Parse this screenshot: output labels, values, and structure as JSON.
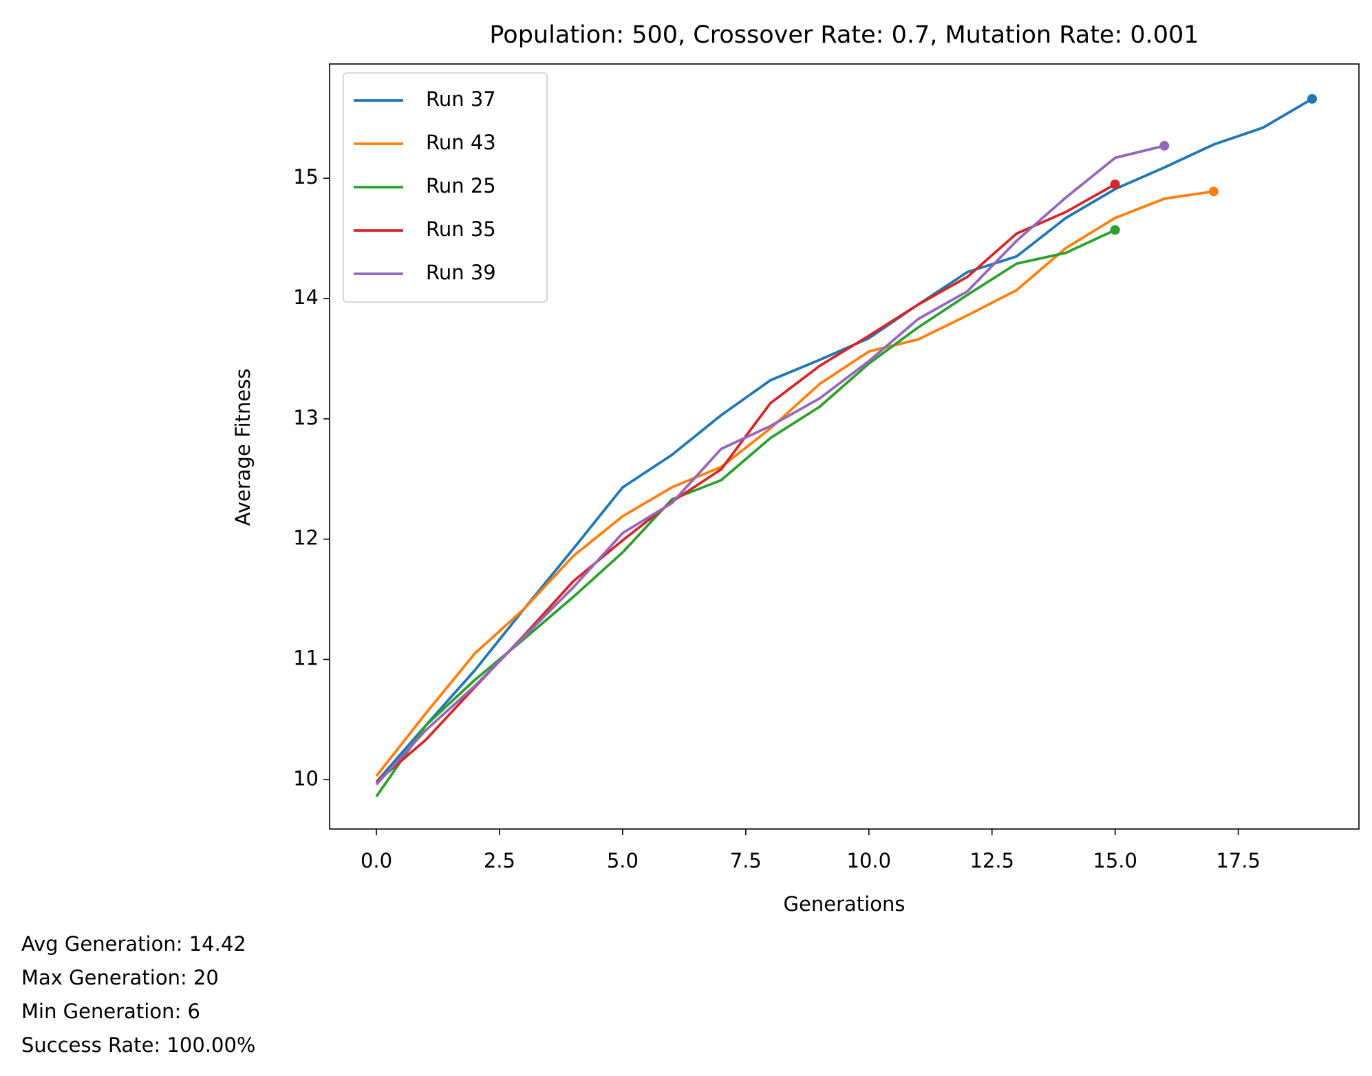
{
  "chart_data": {
    "type": "line",
    "title": "Population: 500, Crossover Rate: 0.7, Mutation Rate: 0.001",
    "xlabel": "Generations",
    "ylabel": "Average Fitness",
    "xlim": [
      -0.95,
      19.95
    ],
    "xticks": [
      {
        "value": 0,
        "label": "0.0"
      },
      {
        "value": 2.5,
        "label": "2.5"
      },
      {
        "value": 5,
        "label": "5.0"
      },
      {
        "value": 7.5,
        "label": "7.5"
      },
      {
        "value": 10,
        "label": "10.0"
      },
      {
        "value": 12.5,
        "label": "12.5"
      },
      {
        "value": 15,
        "label": "15.0"
      },
      {
        "value": 17.5,
        "label": "17.5"
      }
    ],
    "ylim": [
      9.59,
      15.95
    ],
    "yticks": [
      10,
      11,
      12,
      13,
      14,
      15
    ],
    "grid": false,
    "legend": "upper left",
    "end_markers": true,
    "series": [
      {
        "name": "Run 37",
        "color": "#1f77b4",
        "x": [
          0,
          1,
          2,
          3,
          4,
          5,
          6,
          7,
          8,
          9,
          10,
          11,
          12,
          13,
          14,
          15,
          16,
          17,
          18,
          19
        ],
        "values": [
          9.98,
          10.45,
          10.91,
          11.42,
          11.92,
          12.43,
          12.7,
          13.03,
          13.32,
          13.49,
          13.67,
          13.95,
          14.22,
          14.35,
          14.67,
          14.91,
          15.09,
          15.28,
          15.42,
          15.66
        ]
      },
      {
        "name": "Run 43",
        "color": "#ff7f0e",
        "x": [
          0,
          1,
          2,
          3,
          4,
          5,
          6,
          7,
          8,
          9,
          10,
          11,
          12,
          13,
          14,
          15,
          16,
          17
        ],
        "values": [
          10.03,
          10.55,
          11.05,
          11.42,
          11.86,
          12.19,
          12.43,
          12.6,
          12.92,
          13.29,
          13.56,
          13.66,
          13.86,
          14.07,
          14.42,
          14.67,
          14.83,
          14.89
        ]
      },
      {
        "name": "Run 25",
        "color": "#2ca02c",
        "x": [
          0,
          1,
          2,
          3,
          4,
          5,
          6,
          7,
          8,
          9,
          10,
          11,
          12,
          13,
          14,
          15
        ],
        "values": [
          9.86,
          10.45,
          10.83,
          11.17,
          11.52,
          11.89,
          12.33,
          12.49,
          12.84,
          13.1,
          13.46,
          13.76,
          14.03,
          14.29,
          14.38,
          14.57
        ]
      },
      {
        "name": "Run 35",
        "color": "#d62728",
        "x": [
          0,
          1,
          2,
          3,
          4,
          5,
          6,
          7,
          8,
          9,
          10,
          11,
          12,
          13,
          14,
          15
        ],
        "values": [
          9.98,
          10.33,
          10.77,
          11.2,
          11.65,
          11.99,
          12.31,
          12.58,
          13.13,
          13.44,
          13.69,
          13.95,
          14.18,
          14.54,
          14.72,
          14.95
        ]
      },
      {
        "name": "Run 39",
        "color": "#9467bd",
        "x": [
          0,
          1,
          2,
          3,
          4,
          5,
          6,
          7,
          8,
          9,
          10,
          11,
          12,
          13,
          14,
          15,
          16
        ],
        "values": [
          9.96,
          10.41,
          10.78,
          11.19,
          11.6,
          12.05,
          12.3,
          12.75,
          12.94,
          13.17,
          13.48,
          13.83,
          14.06,
          14.48,
          14.84,
          15.17,
          15.27
        ]
      }
    ],
    "annotations": [
      "Avg Generation: 14.42",
      "Max Generation: 20",
      "Min Generation: 6",
      "Success Rate: 100.00%"
    ]
  }
}
